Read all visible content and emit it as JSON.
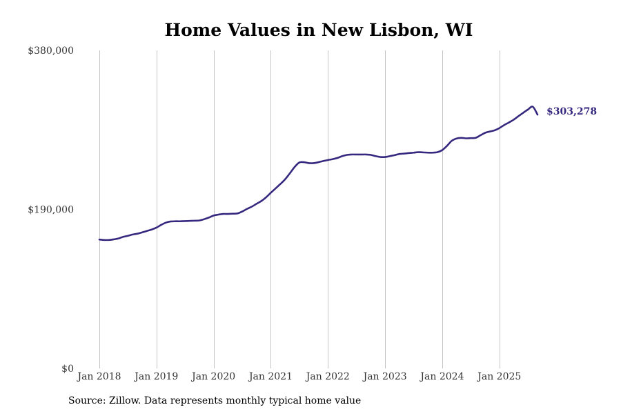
{
  "chart_data": {
    "type": "line",
    "title": "Home Values in New Lisbon, WI",
    "xlabel": "",
    "ylabel": "",
    "ylim": [
      0,
      380000
    ],
    "y_ticks": [
      {
        "value": 0,
        "label": "$0"
      },
      {
        "value": 190000,
        "label": "$190,000"
      },
      {
        "value": 380000,
        "label": "$380,000"
      }
    ],
    "x_ticks": [
      {
        "value": 2018,
        "label": "Jan 2018"
      },
      {
        "value": 2019,
        "label": "Jan 2019"
      },
      {
        "value": 2020,
        "label": "Jan 2020"
      },
      {
        "value": 2021,
        "label": "Jan 2021"
      },
      {
        "value": 2022,
        "label": "Jan 2022"
      },
      {
        "value": 2023,
        "label": "Jan 2023"
      },
      {
        "value": 2024,
        "label": "Jan 2024"
      },
      {
        "value": 2025,
        "label": "Jan 2025"
      }
    ],
    "xlim": [
      2018,
      2025.6667
    ],
    "grid": "vertical",
    "line_color": "#35297f",
    "series": [
      {
        "name": "Typical home value",
        "end_label": "$303,278",
        "points": [
          [
            2018.0,
            154000
          ],
          [
            2018.0833,
            153500
          ],
          [
            2018.1667,
            153500
          ],
          [
            2018.25,
            154200
          ],
          [
            2018.3333,
            155300
          ],
          [
            2018.4167,
            157200
          ],
          [
            2018.5,
            158500
          ],
          [
            2018.5833,
            160000
          ],
          [
            2018.6667,
            161000
          ],
          [
            2018.75,
            162600
          ],
          [
            2018.8333,
            164300
          ],
          [
            2018.9167,
            166000
          ],
          [
            2019.0,
            168300
          ],
          [
            2019.0833,
            171600
          ],
          [
            2019.1667,
            174300
          ],
          [
            2019.25,
            175600
          ],
          [
            2019.3333,
            175800
          ],
          [
            2019.4167,
            175800
          ],
          [
            2019.5,
            176000
          ],
          [
            2019.5833,
            176300
          ],
          [
            2019.6667,
            176500
          ],
          [
            2019.75,
            176800
          ],
          [
            2019.8333,
            178300
          ],
          [
            2019.9167,
            180300
          ],
          [
            2020.0,
            182700
          ],
          [
            2020.0833,
            183800
          ],
          [
            2020.1667,
            184600
          ],
          [
            2020.25,
            184600
          ],
          [
            2020.3333,
            184900
          ],
          [
            2020.4167,
            185200
          ],
          [
            2020.5,
            187500
          ],
          [
            2020.5833,
            190600
          ],
          [
            2020.6667,
            193300
          ],
          [
            2020.75,
            196700
          ],
          [
            2020.8333,
            200000
          ],
          [
            2020.9167,
            204400
          ],
          [
            2021.0,
            209900
          ],
          [
            2021.0833,
            215100
          ],
          [
            2021.1667,
            220300
          ],
          [
            2021.25,
            226000
          ],
          [
            2021.3333,
            233100
          ],
          [
            2021.4167,
            240700
          ],
          [
            2021.5,
            246100
          ],
          [
            2021.5833,
            246400
          ],
          [
            2021.6667,
            245300
          ],
          [
            2021.75,
            245300
          ],
          [
            2021.8333,
            246400
          ],
          [
            2021.9167,
            247800
          ],
          [
            2022.0,
            249000
          ],
          [
            2022.0833,
            250100
          ],
          [
            2022.1667,
            251500
          ],
          [
            2022.25,
            253700
          ],
          [
            2022.3333,
            255100
          ],
          [
            2022.4167,
            255600
          ],
          [
            2022.5,
            255600
          ],
          [
            2022.5833,
            255600
          ],
          [
            2022.6667,
            255600
          ],
          [
            2022.75,
            255100
          ],
          [
            2022.8333,
            253700
          ],
          [
            2022.9167,
            252600
          ],
          [
            2023.0,
            252600
          ],
          [
            2023.0833,
            253700
          ],
          [
            2023.1667,
            254800
          ],
          [
            2023.25,
            256200
          ],
          [
            2023.3333,
            256700
          ],
          [
            2023.4167,
            257300
          ],
          [
            2023.5,
            257800
          ],
          [
            2023.5833,
            258400
          ],
          [
            2023.6667,
            258100
          ],
          [
            2023.75,
            257800
          ],
          [
            2023.8333,
            257800
          ],
          [
            2023.9167,
            258400
          ],
          [
            2024.0,
            260900
          ],
          [
            2024.0833,
            266000
          ],
          [
            2024.1667,
            272000
          ],
          [
            2024.25,
            274700
          ],
          [
            2024.3333,
            275500
          ],
          [
            2024.4167,
            274900
          ],
          [
            2024.5,
            275200
          ],
          [
            2024.5833,
            275500
          ],
          [
            2024.6667,
            278500
          ],
          [
            2024.75,
            281500
          ],
          [
            2024.8333,
            283100
          ],
          [
            2024.9167,
            284500
          ],
          [
            2025.0,
            287200
          ],
          [
            2025.0833,
            290800
          ],
          [
            2025.1667,
            293900
          ],
          [
            2025.25,
            297200
          ],
          [
            2025.3333,
            301400
          ],
          [
            2025.4167,
            305500
          ],
          [
            2025.5,
            309300
          ],
          [
            2025.5833,
            312700
          ],
          [
            2025.6667,
            303278
          ]
        ]
      }
    ]
  },
  "footer": {
    "source": "Source: Zillow. Data represents monthly typical home value"
  }
}
